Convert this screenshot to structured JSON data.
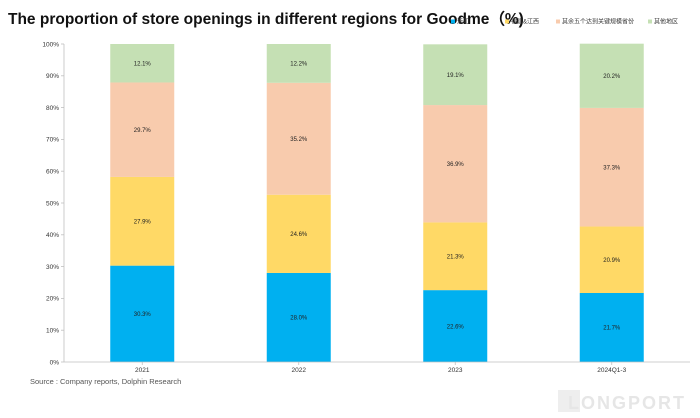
{
  "title": "The proportion of store openings in different regions for Goodme（%)",
  "source": "Source : Company reports, Dolphin Research",
  "watermark": "LONGPORT",
  "chart_data": {
    "type": "bar",
    "stacked": true,
    "categories": [
      "2021",
      "2022",
      "2023",
      "2024Q1-3"
    ],
    "series": [
      {
        "name": "浙江",
        "color": "#00B0F0",
        "values": [
          30.3,
          28.0,
          22.6,
          21.7
        ]
      },
      {
        "name": "福建&江西",
        "color": "#FFD966",
        "values": [
          27.9,
          24.6,
          21.3,
          20.9
        ]
      },
      {
        "name": "其余五个达到关键规模省份",
        "color": "#F8CBAD",
        "values": [
          29.7,
          35.2,
          36.9,
          37.3
        ]
      },
      {
        "name": "其他地区",
        "color": "#C5E0B4",
        "values": [
          12.1,
          12.2,
          19.1,
          20.2
        ]
      }
    ],
    "ylim": [
      0,
      100
    ],
    "yticks": [
      "0%",
      "10%",
      "20%",
      "30%",
      "40%",
      "50%",
      "60%",
      "70%",
      "80%",
      "90%",
      "100%"
    ],
    "legend_position": "top",
    "grid": false
  }
}
